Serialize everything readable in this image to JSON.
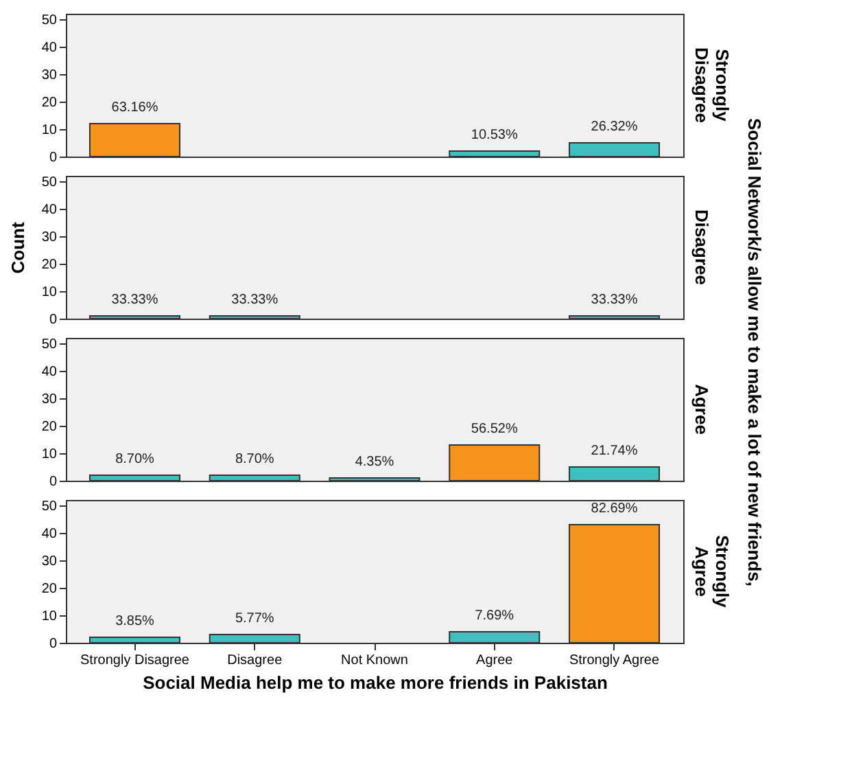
{
  "chart_data": [
    {
      "type": "bar",
      "title": "Strongly Disagree",
      "categories": [
        "Strongly Disagree",
        "Disagree",
        "Not Known",
        "Agree",
        "Strongly Agree"
      ],
      "values": [
        12,
        null,
        null,
        2,
        5
      ],
      "colors": [
        "#f7941d",
        null,
        null,
        "#40bfbf",
        "#40bfbf"
      ],
      "ylim": [
        0,
        52
      ],
      "yticks": [
        0,
        10,
        20,
        30,
        40,
        50
      ],
      "tick_labels": "y",
      "annotations": [
        "Social Network/s allow me to make a lot of new friends,",
        {
          "text": "63.16%",
          "x": "Strongly Disagree",
          "y": 12
        },
        {
          "text": "10.53%",
          "x": "Agree",
          "y": 2
        },
        {
          "text": "26.32%",
          "x": "Strongly Agree",
          "y": 5
        }
      ]
    },
    {
      "type": "bar",
      "title": "Disagree",
      "ylabel": "Count",
      "categories": [
        "Strongly Disagree",
        "Disagree",
        "Not Known",
        "Agree",
        "Strongly Agree"
      ],
      "values": [
        1,
        1,
        null,
        null,
        1
      ],
      "colors": [
        "#40bfbf",
        "#40bfbf",
        null,
        null,
        "#40bfbf"
      ],
      "ylim": [
        0,
        52
      ],
      "yticks": [
        0,
        10,
        20,
        30,
        40,
        50
      ],
      "tick_labels": "y",
      "annotations": [
        {
          "text": "33.33%",
          "x": "Strongly Disagree",
          "y": 1
        },
        {
          "text": "33.33%",
          "x": "Disagree",
          "y": 1
        },
        {
          "text": "33.33%",
          "x": "Strongly Agree",
          "y": 1
        }
      ]
    },
    {
      "type": "bar",
      "title": "Agree",
      "categories": [
        "Strongly Disagree",
        "Disagree",
        "Not Known",
        "Agree",
        "Strongly Agree"
      ],
      "values": [
        2,
        2,
        1,
        13,
        5
      ],
      "colors": [
        "#40bfbf",
        "#40bfbf",
        "#40bfbf",
        "#f7941d",
        "#40bfbf"
      ],
      "ylim": [
        0,
        52
      ],
      "yticks": [
        0,
        10,
        20,
        30,
        40,
        50
      ],
      "tick_labels": "y",
      "annotations": [
        {
          "text": "8.70%",
          "x": "Strongly Disagree",
          "y": 2
        },
        {
          "text": "8.70%",
          "x": "Disagree",
          "y": 2
        },
        {
          "text": "4.35%",
          "x": "Not Known",
          "y": 1
        },
        {
          "text": "56.52%",
          "x": "Agree",
          "y": 13
        },
        {
          "text": "21.74%",
          "x": "Strongly Agree",
          "y": 5
        }
      ]
    },
    {
      "type": "bar",
      "title": "Strongly Agree",
      "xlabel": "Social Media help me to make more friends in Pakistan",
      "categories": [
        "Strongly Disagree",
        "Disagree",
        "Not Known",
        "Agree",
        "Strongly Agree"
      ],
      "values": [
        2,
        3,
        null,
        4,
        43
      ],
      "colors": [
        "#40bfbf",
        "#40bfbf",
        null,
        "#40bfbf",
        "#f7941d"
      ],
      "ylim": [
        0,
        52
      ],
      "yticks": [
        0,
        10,
        20,
        30,
        40,
        50
      ],
      "annotations": [
        {
          "text": "3.85%",
          "x": "Strongly Disagree",
          "y": 2
        },
        {
          "text": "5.77%",
          "x": "Disagree",
          "y": 3
        },
        {
          "text": "7.69%",
          "x": "Agree",
          "y": 4
        },
        {
          "text": "82.69%",
          "x": "Strongly Agree",
          "y": 43
        }
      ]
    }
  ]
}
